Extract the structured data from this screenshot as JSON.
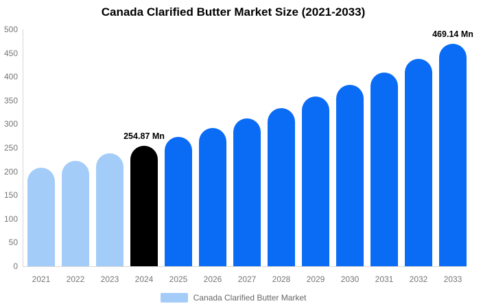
{
  "title": "Canada Clarified Butter Market Size (2021-2033)",
  "legend": {
    "label": "Canada Clarified Butter Market",
    "swatch_color": "#A3CCF9"
  },
  "colors": {
    "historical_bar": "#A3CCF9",
    "base_year_bar": "#000000",
    "forecast_bar": "#0A6CF5",
    "axis_text": "#757575",
    "legend_text": "#666666",
    "axis_line": "#D6D6D6",
    "title_text": "#000000",
    "background": "#FFFFFF"
  },
  "chart_data": {
    "type": "bar",
    "title": "Canada Clarified Butter Market Size (2021-2033)",
    "xlabel": "",
    "ylabel": "",
    "unit": "Mn",
    "categories": [
      "2021",
      "2022",
      "2023",
      "2024",
      "2025",
      "2026",
      "2027",
      "2028",
      "2029",
      "2030",
      "2031",
      "2032",
      "2033"
    ],
    "values": [
      208,
      222.6,
      238.2,
      254.87,
      272.7,
      291.9,
      312.4,
      334.3,
      357.7,
      382.8,
      409.7,
      438.4,
      469.14
    ],
    "bar_colors": [
      "#A3CCF9",
      "#A3CCF9",
      "#A3CCF9",
      "#000000",
      "#0A6CF5",
      "#0A6CF5",
      "#0A6CF5",
      "#0A6CF5",
      "#0A6CF5",
      "#0A6CF5",
      "#0A6CF5",
      "#0A6CF5",
      "#0A6CF5"
    ],
    "series_name": "Canada Clarified Butter Market",
    "ylim": [
      0,
      500
    ],
    "yticks": [
      0,
      50,
      100,
      150,
      200,
      250,
      300,
      350,
      400,
      450,
      500
    ],
    "grid": false,
    "legend_position": "bottom",
    "annotations": [
      {
        "category": "2024",
        "label": "254.87 Mn"
      },
      {
        "category": "2033",
        "label": "469.14 Mn"
      }
    ]
  }
}
